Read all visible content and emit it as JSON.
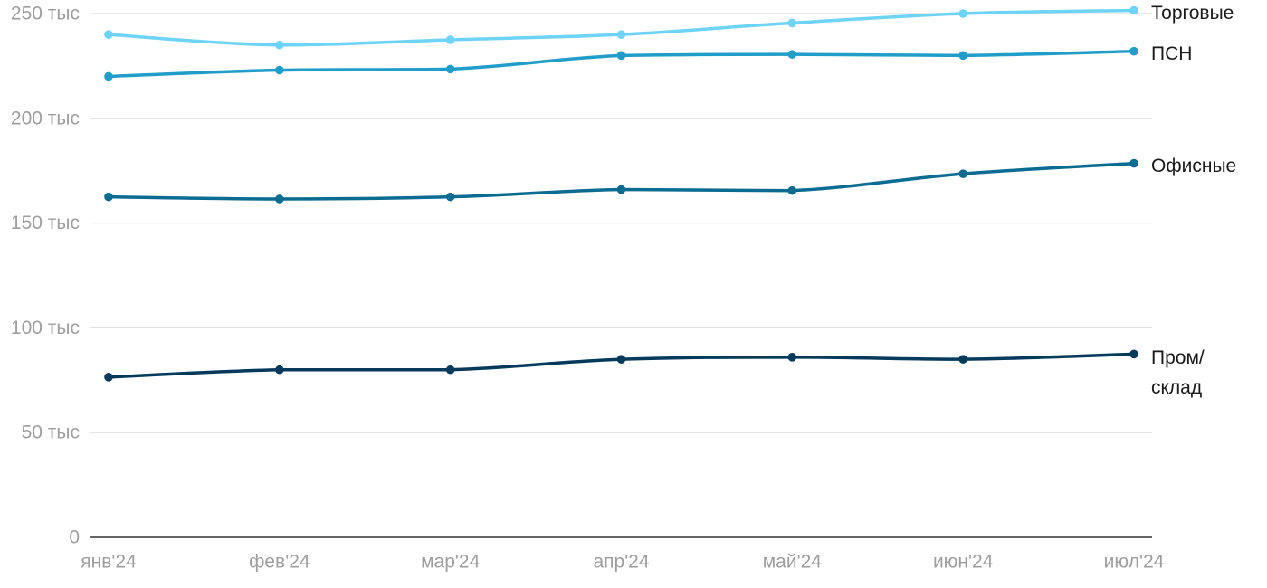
{
  "chart_data": {
    "type": "line",
    "categories": [
      "янв'24",
      "фев'24",
      "мар'24",
      "апр'24",
      "май'24",
      "июн'24",
      "июл'24"
    ],
    "ylim": [
      0,
      250000
    ],
    "yticks": [
      {
        "value": 0,
        "label": "0"
      },
      {
        "value": 50000,
        "label": "50 тыс"
      },
      {
        "value": 100000,
        "label": "100 тыс"
      },
      {
        "value": 150000,
        "label": "150 тыс"
      },
      {
        "value": 200000,
        "label": "200 тыс"
      },
      {
        "value": 250000,
        "label": "250 тыс"
      }
    ],
    "grid": true,
    "legend": "right-end-labels",
    "series": [
      {
        "name": "Торговые",
        "label_lines": [
          "Торговые"
        ],
        "color": "#6dd3f7",
        "values": [
          240000,
          235000,
          237500,
          240000,
          245500,
          250000,
          251500
        ]
      },
      {
        "name": "ПСН",
        "label_lines": [
          "ПСН"
        ],
        "color": "#219dc9",
        "values": [
          220000,
          223000,
          223500,
          230000,
          230500,
          230000,
          232000
        ]
      },
      {
        "name": "Офисные",
        "label_lines": [
          "Офисные"
        ],
        "color": "#0b6c92",
        "values": [
          162500,
          161500,
          162500,
          166000,
          165500,
          173500,
          178500
        ]
      },
      {
        "name": "Пром/склад",
        "label_lines": [
          "Пром/",
          "склад"
        ],
        "color": "#053a5c",
        "values": [
          76500,
          80000,
          80000,
          85000,
          86000,
          85000,
          87500
        ]
      }
    ]
  }
}
